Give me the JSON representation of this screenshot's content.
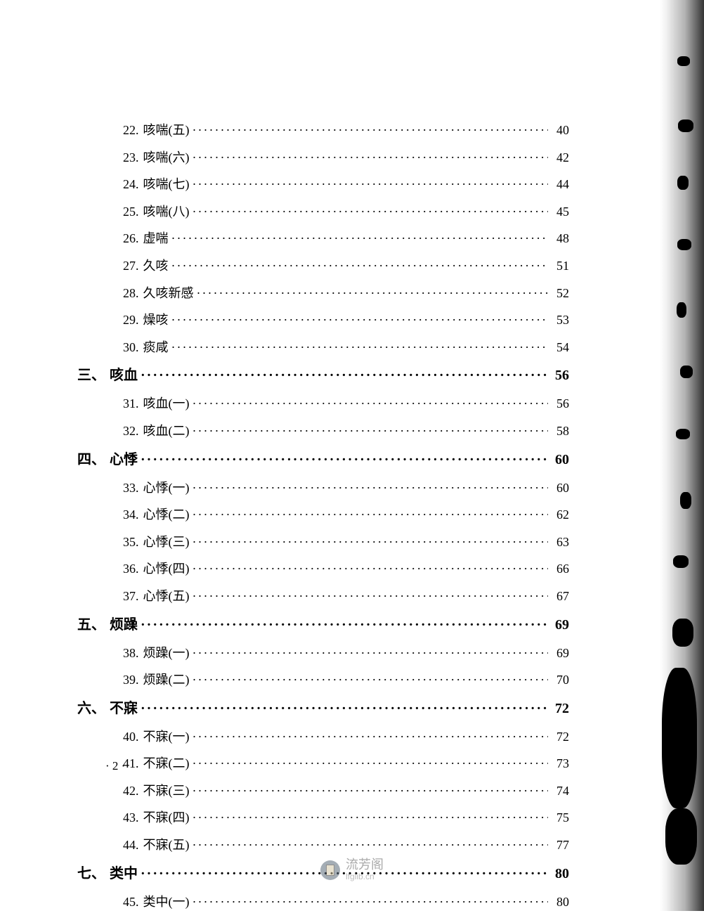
{
  "page_number_display": "· 2 ·",
  "watermark": {
    "cn": "流芳阁",
    "en": "lfglib.cn"
  },
  "toc": [
    {
      "type": "entry",
      "num": "22.",
      "label": "咳喘(五)",
      "page": "40"
    },
    {
      "type": "entry",
      "num": "23.",
      "label": "咳喘(六)",
      "page": "42"
    },
    {
      "type": "entry",
      "num": "24.",
      "label": "咳喘(七)",
      "page": "44"
    },
    {
      "type": "entry",
      "num": "25.",
      "label": "咳喘(八)",
      "page": "45"
    },
    {
      "type": "entry",
      "num": "26.",
      "label": "虚喘",
      "page": "48"
    },
    {
      "type": "entry",
      "num": "27.",
      "label": "久咳",
      "page": "51"
    },
    {
      "type": "entry",
      "num": "28.",
      "label": "久咳新感",
      "page": "52"
    },
    {
      "type": "entry",
      "num": "29.",
      "label": "燥咳",
      "page": "53"
    },
    {
      "type": "entry",
      "num": "30.",
      "label": "痰咸",
      "page": "54"
    },
    {
      "type": "section",
      "num": "三、",
      "label": "咳血",
      "page": "56"
    },
    {
      "type": "entry",
      "num": "31.",
      "label": "咳血(一)",
      "page": "56"
    },
    {
      "type": "entry",
      "num": "32.",
      "label": "咳血(二)",
      "page": "58"
    },
    {
      "type": "section",
      "num": "四、",
      "label": "心悸",
      "page": "60"
    },
    {
      "type": "entry",
      "num": "33.",
      "label": "心悸(一)",
      "page": "60"
    },
    {
      "type": "entry",
      "num": "34.",
      "label": "心悸(二)",
      "page": "62"
    },
    {
      "type": "entry",
      "num": "35.",
      "label": "心悸(三)",
      "page": "63"
    },
    {
      "type": "entry",
      "num": "36.",
      "label": "心悸(四)",
      "page": "66"
    },
    {
      "type": "entry",
      "num": "37.",
      "label": "心悸(五)",
      "page": "67"
    },
    {
      "type": "section",
      "num": "五、",
      "label": "烦躁",
      "page": "69"
    },
    {
      "type": "entry",
      "num": "38.",
      "label": "烦躁(一)",
      "page": "69"
    },
    {
      "type": "entry",
      "num": "39.",
      "label": "烦躁(二)",
      "page": "70"
    },
    {
      "type": "section",
      "num": "六、",
      "label": "不寐",
      "page": "72"
    },
    {
      "type": "entry",
      "num": "40.",
      "label": "不寐(一)",
      "page": "72"
    },
    {
      "type": "entry",
      "num": "41.",
      "label": "不寐(二)",
      "page": "73"
    },
    {
      "type": "entry",
      "num": "42.",
      "label": "不寐(三)",
      "page": "74"
    },
    {
      "type": "entry",
      "num": "43.",
      "label": "不寐(四)",
      "page": "75"
    },
    {
      "type": "entry",
      "num": "44.",
      "label": "不寐(五)",
      "page": "77"
    },
    {
      "type": "section",
      "num": "七、",
      "label": "类中",
      "page": "80"
    },
    {
      "type": "entry",
      "num": "45.",
      "label": "类中(一)",
      "page": "80"
    }
  ]
}
